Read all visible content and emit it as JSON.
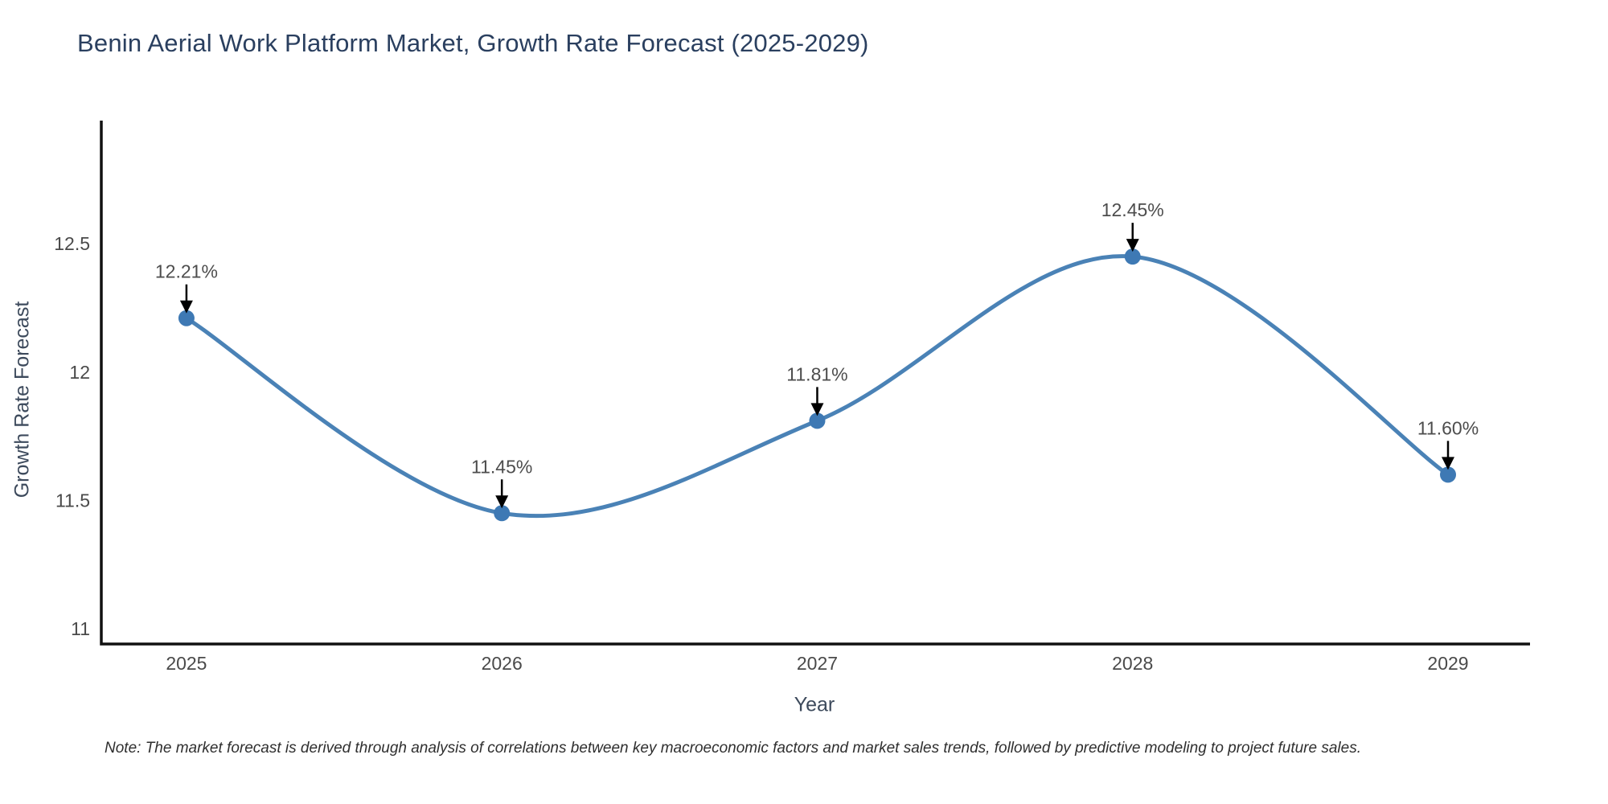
{
  "note": "Note: The market forecast is derived through analysis of correlations between key macroeconomic factors and market sales trends, followed by predictive modeling to project future sales.",
  "chart_data": {
    "type": "line",
    "title": "Benin Aerial Work Platform Market, Growth Rate Forecast (2025-2029)",
    "xlabel": "Year",
    "ylabel": "Growth Rate Forecast",
    "x": [
      2025,
      2026,
      2027,
      2028,
      2029
    ],
    "values": [
      12.21,
      11.45,
      11.81,
      12.45,
      11.6
    ],
    "point_labels": [
      "12.21%",
      "11.45%",
      "11.81%",
      "12.45%",
      "11.60%"
    ],
    "xticks": [
      2025,
      2026,
      2027,
      2028,
      2029
    ],
    "xtick_labels": [
      "2025",
      "2026",
      "2027",
      "2028",
      "2029"
    ],
    "yticks": [
      11,
      11.5,
      12,
      12.5
    ],
    "ytick_labels": [
      "11",
      "11.5",
      "12",
      "12.5"
    ],
    "xlim": [
      2024.73,
      2029.26
    ],
    "ylim": [
      10.94,
      12.98
    ],
    "grid": false,
    "legend": "none",
    "smooth": true,
    "line_color": "#4a82b6",
    "marker_color": "#3e79b4",
    "axis_color": "#111111",
    "annotation_color": "#000000"
  }
}
